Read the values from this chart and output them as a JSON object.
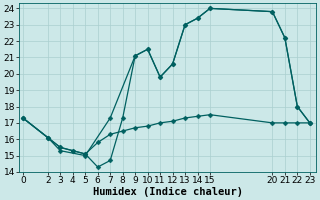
{
  "xlabel": "Humidex (Indice chaleur)",
  "bg_color": "#cce8e8",
  "grid_color": "#aacfcf",
  "line_color": "#006060",
  "line1_x": [
    0,
    2,
    3,
    5,
    7,
    9,
    10,
    11,
    12,
    13,
    14,
    15,
    20,
    21,
    22,
    23
  ],
  "line1_y": [
    17.3,
    16.1,
    15.3,
    15.0,
    17.3,
    21.1,
    21.5,
    19.8,
    20.6,
    23.0,
    23.4,
    24.0,
    23.8,
    22.2,
    18.0,
    17.0
  ],
  "line2_x": [
    0,
    2,
    3,
    4,
    5,
    6,
    7,
    8,
    9,
    10,
    11,
    12,
    13,
    14,
    15,
    20,
    21,
    22,
    23
  ],
  "line2_y": [
    17.3,
    16.1,
    15.5,
    15.3,
    15.1,
    15.8,
    16.3,
    16.5,
    16.7,
    16.8,
    17.0,
    17.1,
    17.3,
    17.4,
    17.5,
    17.0,
    17.0,
    17.0,
    17.0
  ],
  "line3_x": [
    0,
    2,
    3,
    4,
    5,
    6,
    7,
    8,
    9,
    10,
    11,
    12,
    13,
    14,
    15,
    20,
    21,
    22,
    23
  ],
  "line3_y": [
    17.3,
    16.1,
    15.5,
    15.3,
    15.1,
    14.3,
    14.7,
    17.3,
    21.1,
    21.5,
    19.8,
    20.6,
    23.0,
    23.4,
    24.0,
    23.8,
    22.2,
    18.0,
    17.0
  ],
  "xtick_positions": [
    0,
    2,
    3,
    4,
    5,
    6,
    7,
    8,
    9,
    10,
    11,
    12,
    13,
    14,
    15,
    20,
    21,
    22,
    23
  ],
  "xtick_labels": [
    "0",
    "2",
    "3",
    "4",
    "5",
    "6",
    "7",
    "8",
    "9",
    "10",
    "11",
    "12",
    "13",
    "14",
    "15",
    "20",
    "21",
    "22",
    "23"
  ],
  "ytick_positions": [
    14,
    15,
    16,
    17,
    18,
    19,
    20,
    21,
    22,
    23,
    24
  ],
  "ytick_labels": [
    "14",
    "15",
    "16",
    "17",
    "18",
    "19",
    "20",
    "21",
    "22",
    "23",
    "24"
  ],
  "xlim": [
    -0.3,
    23.5
  ],
  "ylim": [
    14,
    24.3
  ],
  "markersize": 2.5,
  "linewidth": 0.9,
  "fontsize_label": 7.5,
  "fontsize_tick": 6.5
}
